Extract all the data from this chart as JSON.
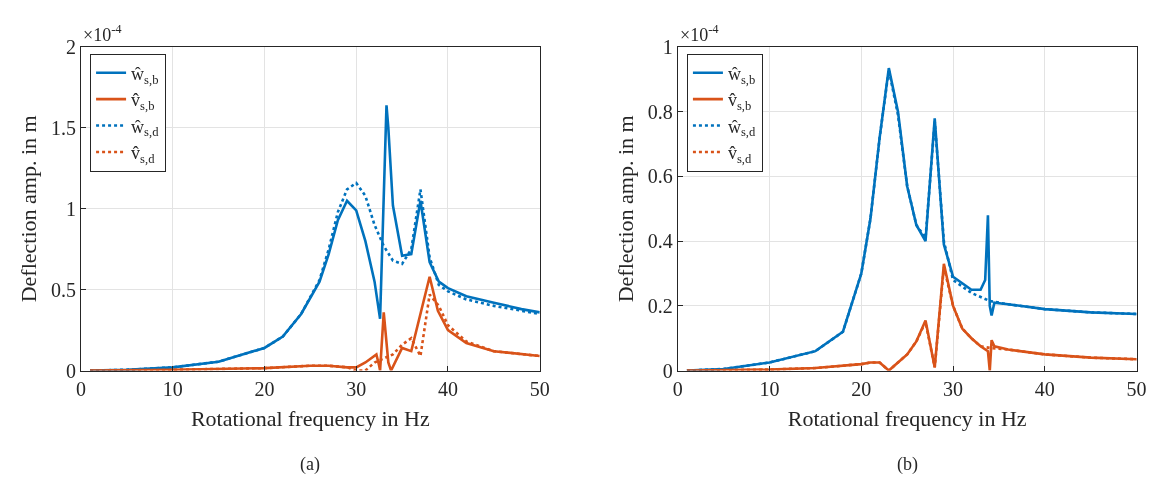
{
  "chart_data": [
    {
      "type": "line",
      "xlabel": "Rotational frequency in Hz",
      "ylabel": "Deflection amp. in m",
      "annotations": [
        "×10$^{-4}$",
        "(a)"
      ],
      "xlim": [
        0,
        50
      ],
      "xticks": [
        0,
        10,
        20,
        30,
        40,
        50
      ],
      "ylim": [
        0,
        2
      ],
      "yticks": [
        0,
        0.5,
        1,
        1.5,
        2
      ],
      "grid": true,
      "legend": "top left",
      "marker": "none",
      "series": [
        {
          "name": "ŵ$_{s,b}$",
          "color": "#0072bd",
          "line_style": "solid",
          "x": [
            1,
            5,
            10,
            15,
            20,
            22,
            24,
            26,
            27,
            28,
            29,
            30,
            31,
            32,
            32.6,
            33.3,
            33.5,
            34,
            35,
            36,
            37,
            38,
            39,
            40,
            42,
            45,
            48,
            50
          ],
          "values": [
            0,
            0.005,
            0.02,
            0.055,
            0.14,
            0.21,
            0.35,
            0.55,
            0.72,
            0.93,
            1.05,
            0.99,
            0.8,
            0.55,
            0.32,
            1.64,
            1.5,
            1.02,
            0.71,
            0.72,
            1.05,
            0.67,
            0.55,
            0.51,
            0.46,
            0.42,
            0.38,
            0.36
          ]
        },
        {
          "name": "v̂$_{s,b}$",
          "color": "#d95319",
          "line_style": "solid",
          "x": [
            1,
            10,
            20,
            25,
            27,
            29,
            30,
            31,
            32.2,
            32.5,
            32.6,
            33.0,
            33.5,
            33.8,
            35,
            36,
            38,
            38.9,
            40,
            42,
            45,
            50
          ],
          "values": [
            0,
            0.005,
            0.015,
            0.03,
            0.03,
            0.02,
            0.02,
            0.05,
            0.1,
            0.03,
            0.0,
            0.36,
            0.05,
            0.0,
            0.14,
            0.12,
            0.58,
            0.37,
            0.25,
            0.17,
            0.12,
            0.09
          ]
        },
        {
          "name": "ŵ$_{s,d}$",
          "color": "#0072bd",
          "line_style": "dotted",
          "x": [
            1,
            5,
            10,
            15,
            20,
            22,
            24,
            26,
            27,
            28,
            29,
            30,
            31,
            32,
            33,
            34,
            35,
            36,
            37,
            38,
            39,
            40,
            42,
            45,
            48,
            50
          ],
          "values": [
            0,
            0.005,
            0.02,
            0.055,
            0.14,
            0.21,
            0.35,
            0.56,
            0.75,
            0.98,
            1.12,
            1.16,
            1.08,
            0.9,
            0.77,
            0.68,
            0.66,
            0.75,
            1.12,
            0.7,
            0.53,
            0.49,
            0.44,
            0.4,
            0.37,
            0.35
          ]
        },
        {
          "name": "v̂$_{s,d}$",
          "color": "#d95319",
          "line_style": "dotted",
          "x": [
            1,
            10,
            20,
            25,
            27,
            29,
            30,
            31,
            32,
            34,
            35,
            36,
            37,
            38,
            39,
            40,
            42,
            45,
            50
          ],
          "values": [
            0,
            0.005,
            0.015,
            0.03,
            0.03,
            0.02,
            0.0,
            0.0,
            0.05,
            0.1,
            0.16,
            0.2,
            0.09,
            0.47,
            0.4,
            0.28,
            0.18,
            0.12,
            0.09
          ]
        }
      ]
    },
    {
      "type": "line",
      "xlabel": "Rotational frequency in Hz",
      "ylabel": "Deflection amp. in m",
      "annotations": [
        "×10$^{-4}$",
        "(b)"
      ],
      "xlim": [
        0,
        50
      ],
      "xticks": [
        0,
        10,
        20,
        30,
        40,
        50
      ],
      "ylim": [
        0,
        1
      ],
      "yticks": [
        0,
        0.2,
        0.4,
        0.6,
        0.8,
        1
      ],
      "grid": true,
      "legend": "top left",
      "marker": "none",
      "series": [
        {
          "name": "ŵ$_{s,b}$",
          "color": "#0072bd",
          "line_style": "solid",
          "x": [
            1,
            5,
            10,
            15,
            18,
            20,
            21,
            22,
            23,
            24,
            25,
            26,
            27,
            28,
            29,
            30,
            31,
            32,
            33,
            33.5,
            33.8,
            34,
            34.2,
            34.5,
            36,
            40,
            45,
            50
          ],
          "values": [
            0,
            0.005,
            0.025,
            0.06,
            0.12,
            0.3,
            0.47,
            0.72,
            0.935,
            0.8,
            0.57,
            0.45,
            0.4,
            0.78,
            0.39,
            0.29,
            0.27,
            0.25,
            0.25,
            0.28,
            0.48,
            0.2,
            0.17,
            0.21,
            0.205,
            0.19,
            0.18,
            0.175
          ]
        },
        {
          "name": "v̂$_{s,b}$",
          "color": "#d95319",
          "line_style": "solid",
          "x": [
            1,
            10,
            15,
            20,
            21,
            22,
            23,
            25,
            26,
            27,
            28,
            29,
            30,
            31,
            32,
            33,
            33.8,
            34,
            34.2,
            34.5,
            36,
            40,
            45,
            50
          ],
          "values": [
            0,
            0.003,
            0.008,
            0.02,
            0.025,
            0.025,
            0.0,
            0.05,
            0.09,
            0.155,
            0.01,
            0.33,
            0.2,
            0.13,
            0.1,
            0.075,
            0.06,
            0.0,
            0.094,
            0.075,
            0.065,
            0.05,
            0.04,
            0.035
          ]
        },
        {
          "name": "ŵ$_{s,d}$",
          "color": "#0072bd",
          "line_style": "dotted",
          "x": [
            1,
            5,
            10,
            15,
            18,
            20,
            21,
            22,
            23,
            24,
            25,
            26,
            27,
            28,
            29,
            30,
            32,
            34,
            35,
            36,
            40,
            45,
            50
          ],
          "values": [
            0,
            0.005,
            0.025,
            0.06,
            0.12,
            0.3,
            0.47,
            0.72,
            0.93,
            0.79,
            0.57,
            0.45,
            0.41,
            0.77,
            0.4,
            0.28,
            0.24,
            0.215,
            0.21,
            0.205,
            0.19,
            0.18,
            0.175
          ]
        },
        {
          "name": "v̂$_{s,d}$",
          "color": "#d95319",
          "line_style": "dotted",
          "x": [
            1,
            10,
            15,
            20,
            21,
            22,
            23,
            25,
            26,
            27,
            28,
            29,
            30,
            31,
            32,
            33,
            34,
            36,
            40,
            45,
            50
          ],
          "values": [
            0,
            0.003,
            0.008,
            0.02,
            0.025,
            0.025,
            0.0,
            0.05,
            0.09,
            0.15,
            0.01,
            0.32,
            0.2,
            0.13,
            0.1,
            0.075,
            0.07,
            0.065,
            0.05,
            0.04,
            0.035
          ]
        }
      ]
    }
  ]
}
